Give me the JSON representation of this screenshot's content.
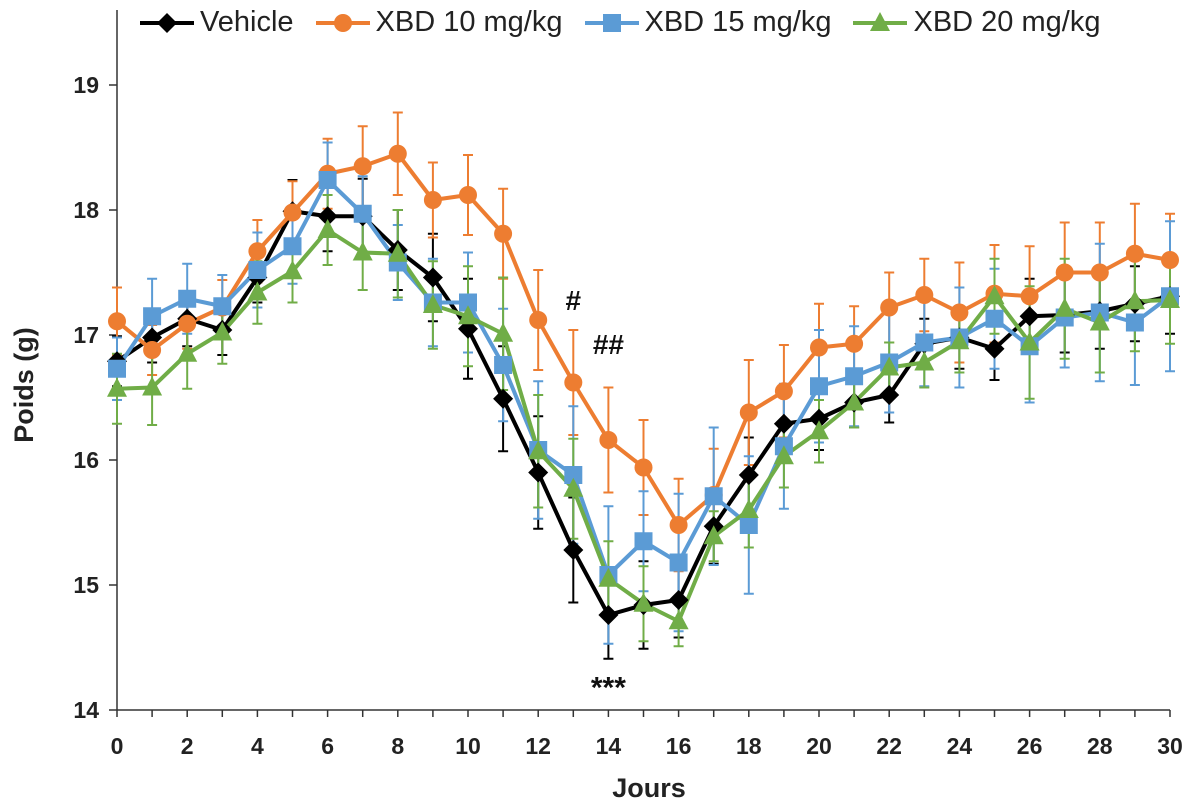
{
  "chart_data": {
    "type": "line",
    "xlabel": "Jours",
    "ylabel": "Poids (g)",
    "xlim": [
      0,
      30
    ],
    "ylim": [
      14,
      19.6
    ],
    "xticks": [
      0,
      2,
      4,
      6,
      8,
      10,
      12,
      14,
      16,
      18,
      20,
      22,
      24,
      26,
      28,
      30
    ],
    "yticks": [
      14,
      15,
      16,
      17,
      18,
      19
    ],
    "grid": false,
    "legend_position": "top",
    "x": [
      0,
      1,
      2,
      3,
      4,
      5,
      6,
      7,
      8,
      9,
      10,
      11,
      12,
      13,
      14,
      15,
      16,
      17,
      18,
      19,
      20,
      21,
      22,
      23,
      24,
      25,
      26,
      27,
      28,
      29,
      30
    ],
    "series": [
      {
        "name": "Vehicle",
        "color": "#000000",
        "marker": "diamond",
        "values": [
          16.79,
          16.98,
          17.13,
          17.04,
          17.46,
          17.99,
          17.95,
          17.95,
          17.68,
          17.46,
          17.05,
          16.49,
          15.9,
          15.28,
          14.76,
          14.84,
          14.88,
          15.47,
          15.88,
          16.29,
          16.33,
          16.46,
          16.52,
          16.93,
          16.98,
          16.89,
          17.15,
          17.16,
          17.19,
          17.25,
          17.31
        ],
        "errors": [
          0.2,
          0.2,
          0.22,
          0.2,
          0.2,
          0.25,
          0.28,
          0.3,
          0.32,
          0.35,
          0.4,
          0.42,
          0.45,
          0.42,
          0.35,
          0.35,
          0.3,
          0.3,
          0.3,
          0.25,
          0.25,
          0.2,
          0.22,
          0.2,
          0.25,
          0.25,
          0.3,
          0.3,
          0.3,
          0.3,
          0.3
        ]
      },
      {
        "name": "XBD 10 mg/kg",
        "color": "#ED7D31",
        "marker": "circle",
        "values": [
          17.11,
          16.88,
          17.09,
          17.22,
          17.67,
          17.98,
          18.29,
          18.35,
          18.45,
          18.08,
          18.12,
          17.81,
          17.12,
          16.62,
          16.16,
          15.94,
          15.48,
          15.72,
          16.38,
          16.55,
          16.9,
          16.93,
          17.22,
          17.32,
          17.18,
          17.33,
          17.31,
          17.5,
          17.5,
          17.65,
          17.6
        ],
        "errors": [
          0.27,
          0.2,
          0.2,
          0.22,
          0.25,
          0.25,
          0.28,
          0.32,
          0.33,
          0.3,
          0.32,
          0.36,
          0.4,
          0.42,
          0.42,
          0.38,
          0.37,
          0.37,
          0.42,
          0.37,
          0.35,
          0.3,
          0.28,
          0.29,
          0.4,
          0.39,
          0.4,
          0.4,
          0.4,
          0.4,
          0.37
        ]
      },
      {
        "name": "XBD 15 mg/kg",
        "color": "#5B9BD5",
        "marker": "square",
        "values": [
          16.73,
          17.15,
          17.29,
          17.23,
          17.52,
          17.71,
          18.24,
          17.97,
          17.58,
          17.26,
          17.26,
          16.76,
          16.08,
          15.88,
          15.08,
          15.35,
          15.18,
          15.71,
          15.48,
          16.11,
          16.59,
          16.67,
          16.78,
          16.94,
          16.98,
          17.13,
          16.91,
          17.14,
          17.18,
          17.1,
          17.31
        ],
        "errors": [
          0.25,
          0.3,
          0.28,
          0.25,
          0.3,
          0.3,
          0.3,
          0.3,
          0.3,
          0.35,
          0.4,
          0.45,
          0.55,
          0.55,
          0.55,
          0.4,
          0.55,
          0.55,
          0.55,
          0.5,
          0.45,
          0.4,
          0.4,
          0.35,
          0.4,
          0.4,
          0.45,
          0.4,
          0.55,
          0.5,
          0.6
        ]
      },
      {
        "name": "XBD 20 mg/kg",
        "color": "#70AD47",
        "marker": "triangle",
        "values": [
          16.57,
          16.58,
          16.85,
          17.02,
          17.34,
          17.51,
          17.84,
          17.66,
          17.65,
          17.24,
          17.15,
          17.01,
          16.07,
          15.77,
          15.05,
          14.85,
          14.71,
          15.39,
          15.6,
          16.03,
          16.23,
          16.46,
          16.74,
          16.78,
          16.95,
          17.31,
          16.94,
          17.21,
          17.1,
          17.27,
          17.28
        ],
        "errors": [
          0.28,
          0.3,
          0.28,
          0.25,
          0.25,
          0.25,
          0.28,
          0.3,
          0.35,
          0.35,
          0.4,
          0.45,
          0.45,
          0.4,
          0.3,
          0.3,
          0.2,
          0.2,
          0.3,
          0.25,
          0.25,
          0.2,
          0.2,
          0.2,
          0.25,
          0.3,
          0.45,
          0.4,
          0.4,
          0.4,
          0.35
        ]
      }
    ],
    "annotations": [
      {
        "text": "#",
        "x": 13,
        "y": 17.2
      },
      {
        "text": "##",
        "x": 14,
        "y": 16.85
      },
      {
        "text": "***",
        "x": 14,
        "y": 14.1
      }
    ]
  }
}
